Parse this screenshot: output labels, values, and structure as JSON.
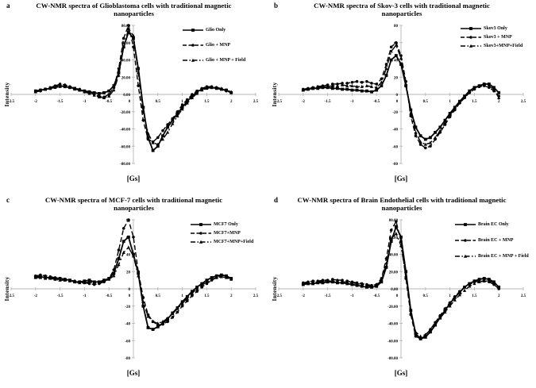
{
  "colors": {
    "line": "#000000",
    "axis": "#b7b7b7",
    "background": "#ffffff"
  },
  "figure": {
    "panels": [
      {
        "letter": "a",
        "title": "CW-NMR spectra of Glioblastoma cells with traditional magnetic nanoparticles",
        "ylabel": "Intensity",
        "xlabel": "[Gs]",
        "chart_data": {
          "type": "line",
          "xlim": [
            -2.5,
            2.5
          ],
          "ylim": [
            -80,
            80
          ],
          "xticks": [
            "-2.5",
            "-2",
            "-1.5",
            "-1",
            "-0.5",
            "0",
            "0.5",
            "1",
            "1.5",
            "2",
            "2.5"
          ],
          "yticks": [
            "80.00",
            "60.00",
            "40.00",
            "20.00",
            "0.00",
            "-20.00",
            "-40.00",
            "-60.00",
            "-80.00"
          ],
          "x": [
            -2,
            -1.9,
            -1.8,
            -1.7,
            -1.6,
            -1.5,
            -1.4,
            -1.3,
            -1.2,
            -1.1,
            -1,
            -0.9,
            -0.8,
            -0.7,
            -0.6,
            -0.5,
            -0.4,
            -0.3,
            -0.2,
            -0.1,
            0,
            0.1,
            0.2,
            0.3,
            0.4,
            0.5,
            0.6,
            0.7,
            0.8,
            0.9,
            1,
            1.1,
            1.2,
            1.3,
            1.4,
            1.5,
            1.6,
            1.7,
            1.8,
            1.9,
            2
          ],
          "series": [
            {
              "name": "Glio Only",
              "line": "solid",
              "marker": "square",
              "values": [
                4,
                5,
                6,
                7,
                9,
                10,
                9,
                8,
                7,
                5,
                4,
                3,
                2,
                1,
                2,
                4,
                10,
                25,
                55,
                72,
                65,
                30,
                -15,
                -50,
                -65,
                -60,
                -48,
                -38,
                -30,
                -22,
                -15,
                -8,
                -2,
                3,
                6,
                8,
                8,
                7,
                6,
                5,
                2
              ]
            },
            {
              "name": "Glio + MNP",
              "line": "dashed",
              "marker": "circle",
              "values": [
                3,
                4,
                6,
                8,
                10,
                12,
                11,
                9,
                7,
                6,
                4,
                2,
                0,
                -2,
                -3,
                0,
                8,
                30,
                65,
                80,
                55,
                10,
                -30,
                -52,
                -55,
                -50,
                -42,
                -35,
                -28,
                -20,
                -12,
                -6,
                0,
                4,
                7,
                9,
                9,
                8,
                6,
                4,
                2
              ]
            },
            {
              "name": "Glio + MNP + Field",
              "line": "dashdot",
              "marker": "triangle",
              "values": [
                3,
                5,
                6,
                7,
                8,
                9,
                10,
                8,
                6,
                5,
                3,
                1,
                -1,
                -3,
                -4,
                -2,
                5,
                22,
                55,
                76,
                68,
                25,
                -20,
                -45,
                -56,
                -58,
                -52,
                -44,
                -34,
                -25,
                -17,
                -10,
                -4,
                1,
                5,
                7,
                8,
                8,
                7,
                5,
                3
              ]
            }
          ]
        }
      },
      {
        "letter": "b",
        "title": "CW-NMR spectra of Skov-3 cells with traditional magnetic nanoparticles",
        "ylabel": "Intensity",
        "xlabel": "[Gs]",
        "chart_data": {
          "type": "line",
          "xlim": [
            -2.5,
            2.5
          ],
          "ylim": [
            -80,
            80
          ],
          "xticks": [
            "-2.5",
            "-2",
            "-1.5",
            "-1",
            "-0.5",
            "0",
            "0.5",
            "1",
            "1.5",
            "2",
            "2.5"
          ],
          "yticks": [
            "80",
            "60",
            "40",
            "20",
            "0",
            "-20",
            "-40",
            "-60",
            "-80"
          ],
          "x": [
            -2,
            -1.9,
            -1.8,
            -1.7,
            -1.6,
            -1.5,
            -1.4,
            -1.3,
            -1.2,
            -1.1,
            -1,
            -0.9,
            -0.8,
            -0.7,
            -0.6,
            -0.5,
            -0.4,
            -0.3,
            -0.2,
            -0.1,
            0,
            0.1,
            0.2,
            0.3,
            0.4,
            0.5,
            0.6,
            0.7,
            0.8,
            0.9,
            1,
            1.1,
            1.2,
            1.3,
            1.4,
            1.5,
            1.6,
            1.7,
            1.8,
            1.9,
            2
          ],
          "series": [
            {
              "name": "Skov3 Only",
              "line": "solid",
              "marker": "square",
              "values": [
                5,
                6,
                7,
                7,
                8,
                8,
                7,
                7,
                6,
                6,
                5,
                5,
                4,
                4,
                3,
                5,
                10,
                22,
                40,
                45,
                35,
                10,
                -18,
                -38,
                -48,
                -52,
                -50,
                -44,
                -38,
                -30,
                -22,
                -15,
                -8,
                -2,
                4,
                8,
                10,
                12,
                12,
                8,
                2
              ]
            },
            {
              "name": "Skov3 + MNP",
              "line": "dashed",
              "marker": "circle",
              "values": [
                6,
                7,
                8,
                9,
                10,
                11,
                12,
                12,
                13,
                13,
                14,
                15,
                14,
                15,
                13,
                12,
                18,
                35,
                55,
                60,
                45,
                15,
                -25,
                -48,
                -58,
                -62,
                -60,
                -52,
                -44,
                -35,
                -26,
                -18,
                -10,
                -4,
                2,
                6,
                9,
                10,
                8,
                4,
                -2
              ]
            },
            {
              "name": "Skov3+MNP+Field",
              "line": "dashdot",
              "marker": "triangle",
              "values": [
                5,
                6,
                7,
                8,
                9,
                9,
                10,
                10,
                11,
                10,
                10,
                9,
                9,
                10,
                9,
                8,
                14,
                30,
                50,
                57,
                42,
                12,
                -22,
                -44,
                -55,
                -58,
                -56,
                -50,
                -42,
                -33,
                -24,
                -16,
                -9,
                -3,
                3,
                7,
                10,
                11,
                10,
                6,
                -4
              ]
            }
          ]
        }
      },
      {
        "letter": "c",
        "title": "CW-NMR spectra of MCF-7 cells with traditional magnetic nanoparticles",
        "ylabel": "Intensity",
        "xlabel": "[Gs]",
        "chart_data": {
          "type": "line",
          "xlim": [
            -2.5,
            2.5
          ],
          "ylim": [
            -80,
            80
          ],
          "xticks": [
            "-2.5",
            "-2",
            "-1.5",
            "-1",
            "-0.5",
            "0",
            "0.5",
            "1",
            "1.5",
            "2",
            "2.5"
          ],
          "yticks": [
            "80",
            "60",
            "40",
            "20",
            "0",
            "-20",
            "-40",
            "-60",
            "-80"
          ],
          "x": [
            -2,
            -1.9,
            -1.8,
            -1.7,
            -1.6,
            -1.5,
            -1.4,
            -1.3,
            -1.2,
            -1.1,
            -1,
            -0.9,
            -0.8,
            -0.7,
            -0.6,
            -0.5,
            -0.4,
            -0.3,
            -0.2,
            -0.1,
            0,
            0.1,
            0.2,
            0.3,
            0.4,
            0.5,
            0.6,
            0.7,
            0.8,
            0.9,
            1,
            1.1,
            1.2,
            1.3,
            1.4,
            1.5,
            1.6,
            1.7,
            1.8,
            1.9,
            2
          ],
          "series": [
            {
              "name": "MCF7 Only",
              "line": "solid",
              "marker": "square",
              "values": [
                14,
                14,
                13,
                13,
                12,
                12,
                11,
                10,
                8,
                8,
                9,
                10,
                8,
                8,
                10,
                12,
                18,
                35,
                55,
                60,
                40,
                18,
                -20,
                -45,
                -47,
                -44,
                -40,
                -35,
                -28,
                -22,
                -15,
                -9,
                -3,
                2,
                6,
                10,
                13,
                15,
                16,
                15,
                12
              ]
            },
            {
              "name": "MCF7+MNP",
              "line": "dashed",
              "marker": "circle",
              "values": [
                15,
                16,
                15,
                14,
                13,
                12,
                11,
                10,
                9,
                8,
                7,
                6,
                5,
                6,
                8,
                12,
                22,
                45,
                70,
                80,
                60,
                20,
                -10,
                -30,
                -38,
                -42,
                -41,
                -38,
                -33,
                -27,
                -20,
                -14,
                -8,
                -3,
                2,
                6,
                10,
                13,
                15,
                14,
                12
              ]
            },
            {
              "name": "MCF7+MNP+Field",
              "line": "dashdot",
              "marker": "triangle",
              "values": [
                13,
                13,
                12,
                12,
                11,
                10,
                10,
                9,
                8,
                7,
                7,
                8,
                7,
                7,
                9,
                11,
                15,
                28,
                42,
                48,
                38,
                15,
                -15,
                -32,
                -38,
                -40,
                -38,
                -34,
                -29,
                -23,
                -17,
                -11,
                -5,
                0,
                4,
                8,
                11,
                13,
                14,
                13,
                11
              ]
            }
          ]
        }
      },
      {
        "letter": "d",
        "title": "CW-NMR spectra of Brain Endothelial cells with traditional magnetic nanoparticles",
        "ylabel": "Intensity",
        "xlabel": "[Gs]",
        "chart_data": {
          "type": "line",
          "xlim": [
            -2.5,
            2.5
          ],
          "ylim": [
            -80,
            80
          ],
          "xticks": [
            "-2.5",
            "-2",
            "-1.5",
            "-1",
            "-0.5",
            "0",
            "0.5",
            "1",
            "1.5",
            "2",
            "2.5"
          ],
          "yticks": [
            "80.00",
            "60.00",
            "40.00",
            "20.00",
            "0.00",
            "-20.00",
            "-40.00",
            "-60.00",
            "-80.00"
          ],
          "x": [
            -2,
            -1.9,
            -1.8,
            -1.7,
            -1.6,
            -1.5,
            -1.4,
            -1.3,
            -1.2,
            -1.1,
            -1,
            -0.9,
            -0.8,
            -0.7,
            -0.6,
            -0.5,
            -0.4,
            -0.3,
            -0.2,
            -0.1,
            0,
            0.1,
            0.2,
            0.3,
            0.4,
            0.5,
            0.6,
            0.7,
            0.8,
            0.9,
            1,
            1.1,
            1.2,
            1.3,
            1.4,
            1.5,
            1.6,
            1.7,
            1.8,
            1.9,
            2
          ],
          "series": [
            {
              "name": "Brain EC Only",
              "line": "solid",
              "marker": "square",
              "values": [
                5,
                6,
                6,
                7,
                7,
                8,
                8,
                7,
                7,
                6,
                5,
                4,
                3,
                2,
                2,
                3,
                8,
                25,
                55,
                72,
                60,
                20,
                -25,
                -52,
                -58,
                -56,
                -50,
                -42,
                -33,
                -25,
                -17,
                -10,
                -4,
                2,
                6,
                9,
                11,
                12,
                11,
                8,
                2
              ]
            },
            {
              "name": "Brain EC + MNP",
              "line": "dashed",
              "marker": "circle",
              "values": [
                7,
                8,
                9,
                9,
                10,
                10,
                11,
                10,
                10,
                9,
                8,
                7,
                6,
                5,
                4,
                5,
                12,
                35,
                68,
                78,
                55,
                12,
                -30,
                -55,
                -58,
                -54,
                -47,
                -39,
                -31,
                -23,
                -16,
                -9,
                -3,
                2,
                5,
                8,
                9,
                9,
                8,
                5,
                0
              ]
            },
            {
              "name": "Brain EC + MNP + Field",
              "line": "dashdot",
              "marker": "triangle",
              "values": [
                6,
                7,
                8,
                8,
                9,
                9,
                9,
                9,
                8,
                8,
                7,
                6,
                5,
                4,
                3,
                4,
                10,
                30,
                58,
                64,
                50,
                15,
                -28,
                -50,
                -55,
                -53,
                -48,
                -41,
                -34,
                -27,
                -20,
                -13,
                -7,
                -2,
                3,
                6,
                8,
                9,
                9,
                7,
                2
              ]
            }
          ]
        }
      }
    ]
  }
}
